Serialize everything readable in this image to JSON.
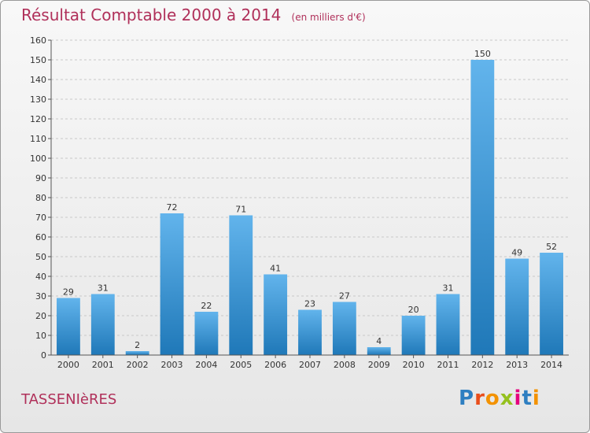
{
  "title": "Résultat Comptable 2000 à 2014",
  "subtitle": "(en milliers d'€)",
  "commune": "TASSENIèRES",
  "logo": {
    "text": "Proxiti",
    "colors": [
      "#2e7fc1",
      "#e94e1b",
      "#f39200",
      "#95c11f",
      "#e5007e",
      "#2e7fc1",
      "#f39200"
    ]
  },
  "colors": {
    "bar_top": "#62b4ec",
    "bar_bottom": "#1f78b8",
    "title": "#b0305a",
    "grid": "#c8c8c8"
  },
  "chart_data": {
    "type": "bar",
    "categories": [
      "2000",
      "2001",
      "2002",
      "2003",
      "2004",
      "2005",
      "2006",
      "2007",
      "2008",
      "2009",
      "2010",
      "2011",
      "2012",
      "2013",
      "2014"
    ],
    "values": [
      29,
      31,
      2,
      72,
      22,
      71,
      41,
      23,
      27,
      4,
      20,
      31,
      150,
      49,
      52
    ],
    "ylim": [
      0,
      160
    ],
    "yticks": [
      0,
      10,
      20,
      30,
      40,
      50,
      60,
      70,
      80,
      90,
      100,
      110,
      120,
      130,
      140,
      150,
      160
    ],
    "grid": true,
    "title": "Résultat Comptable 2000 à 2014",
    "xlabel": "",
    "ylabel": ""
  }
}
